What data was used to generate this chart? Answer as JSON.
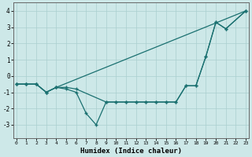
{
  "line_a_x": [
    0,
    1,
    2,
    3,
    4,
    23
  ],
  "line_a_y": [
    -0.5,
    -0.5,
    -0.5,
    -1.0,
    -0.7,
    4.0
  ],
  "line_b_x": [
    0,
    1,
    2,
    3,
    4,
    5,
    6,
    9,
    10,
    11,
    12,
    13,
    14,
    15,
    16,
    17,
    18,
    19,
    20,
    21,
    23
  ],
  "line_b_y": [
    -0.5,
    -0.5,
    -0.5,
    -1.0,
    -0.7,
    -0.7,
    -0.8,
    -1.6,
    -1.6,
    -1.6,
    -1.6,
    -1.6,
    -1.6,
    -1.6,
    -1.6,
    -0.6,
    -0.6,
    1.2,
    3.3,
    2.9,
    4.0
  ],
  "line_c_x": [
    0,
    1,
    2,
    3,
    4,
    5,
    6,
    7,
    8,
    9,
    10,
    11,
    12,
    13,
    14,
    15,
    16,
    17,
    18,
    19,
    20,
    21,
    23
  ],
  "line_c_y": [
    -0.5,
    -0.5,
    -0.5,
    -1.0,
    -0.7,
    -0.8,
    -1.0,
    -2.3,
    -3.0,
    -1.6,
    -1.6,
    -1.6,
    -1.6,
    -1.6,
    -1.6,
    -1.6,
    -1.6,
    -0.6,
    -0.6,
    1.2,
    3.3,
    2.9,
    4.0
  ],
  "bg_color": "#cde8e8",
  "line_color": "#1a7070",
  "grid_color": "#aacfcf",
  "xlabel": "Humidex (Indice chaleur)",
  "ylim": [
    -3.8,
    4.5
  ],
  "xlim": [
    -0.3,
    23.3
  ],
  "yticks": [
    -3,
    -2,
    -1,
    0,
    1,
    2,
    3,
    4
  ],
  "xticks": [
    0,
    1,
    2,
    3,
    4,
    5,
    6,
    7,
    8,
    9,
    10,
    11,
    12,
    13,
    14,
    15,
    16,
    17,
    18,
    19,
    20,
    21,
    22,
    23
  ]
}
